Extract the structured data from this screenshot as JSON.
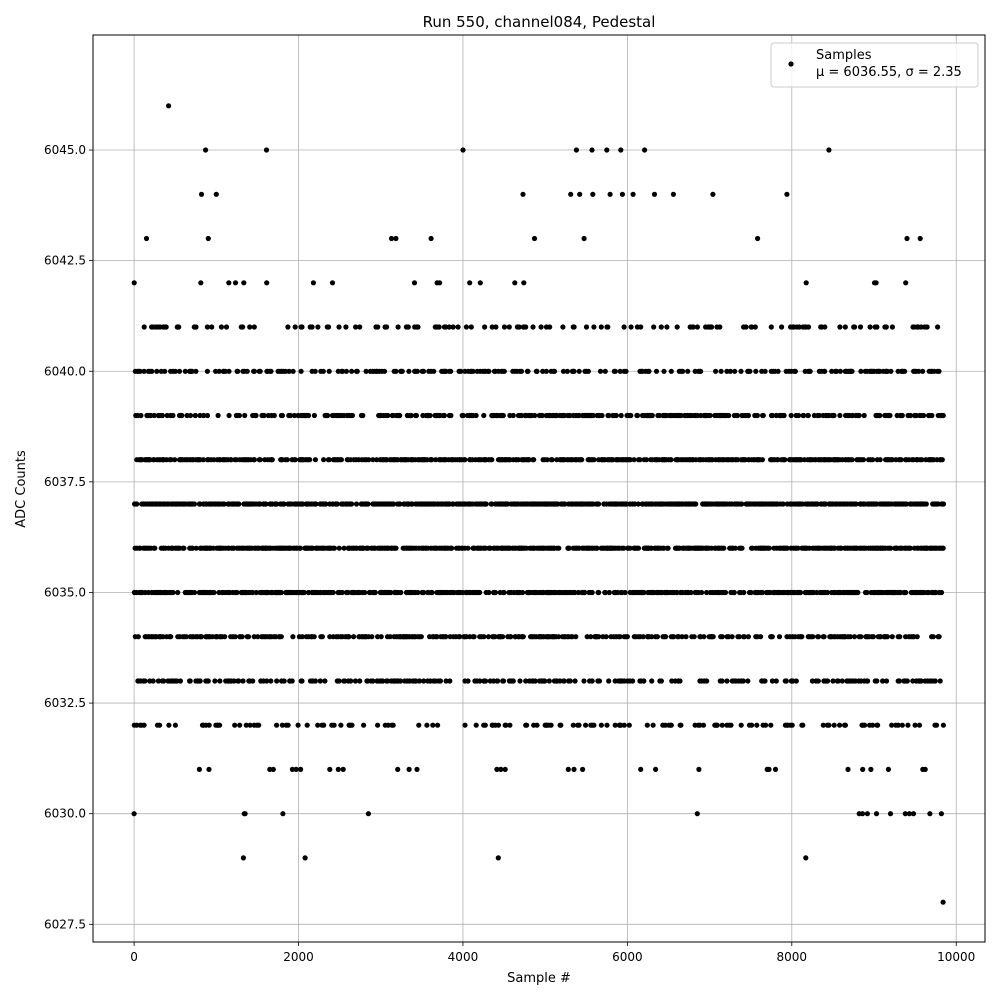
{
  "chart_data": {
    "type": "scatter",
    "title": "Run 550, channel084, Pedestal",
    "xlabel": "Sample #",
    "ylabel": "ADC Counts",
    "xlim": [
      -500,
      10350
    ],
    "ylim": [
      6027.1,
      6047.6
    ],
    "xticks": [
      0,
      2000,
      4000,
      6000,
      8000,
      10000
    ],
    "xtick_labels": [
      "0",
      "2000",
      "4000",
      "6000",
      "8000",
      "10000"
    ],
    "yticks": [
      6027.5,
      6030.0,
      6032.5,
      6035.0,
      6037.5,
      6040.0,
      6042.5,
      6045.0
    ],
    "ytick_labels": [
      "6027.5",
      "6030.0",
      "6032.5",
      "6035.0",
      "6037.5",
      "6040.0",
      "6042.5",
      "6045.0"
    ],
    "grid": true,
    "legend_position": "top-right",
    "marker_color": "#000000",
    "series": [
      {
        "name": "Samples",
        "stats_label": "μ = 6036.55, σ = 2.35",
        "mean": 6036.55,
        "sigma": 2.35,
        "x_range": [
          0,
          9840
        ],
        "dense_levels": [
          6032,
          6033,
          6034,
          6035,
          6036,
          6037,
          6038,
          6039,
          6040,
          6041
        ],
        "sparse_levels": [
          6031,
          6042,
          6043,
          6044,
          6045
        ],
        "points": [
          [
            0,
            6030
          ],
          [
            1340,
            6030
          ],
          [
            1350,
            6030
          ],
          [
            1810,
            6030
          ],
          [
            2850,
            6030
          ],
          [
            6850,
            6030
          ],
          [
            8820,
            6030
          ],
          [
            8860,
            6030
          ],
          [
            8920,
            6030
          ],
          [
            9030,
            6030
          ],
          [
            9200,
            6030
          ],
          [
            9380,
            6030
          ],
          [
            9430,
            6030
          ],
          [
            9480,
            6030
          ],
          [
            9680,
            6030
          ],
          [
            9820,
            6030
          ],
          [
            1330,
            6029
          ],
          [
            2080,
            6029
          ],
          [
            4430,
            6029
          ],
          [
            8170,
            6029
          ],
          [
            9840,
            6028
          ],
          [
            420,
            6046
          ],
          [
            870,
            6045
          ],
          [
            1610,
            6045
          ],
          [
            4000,
            6045
          ],
          [
            5380,
            6045
          ],
          [
            5570,
            6045
          ],
          [
            5750,
            6045
          ],
          [
            5920,
            6045
          ],
          [
            6210,
            6045
          ],
          [
            820,
            6044
          ],
          [
            1000,
            6044
          ],
          [
            4730,
            6044
          ],
          [
            5310,
            6044
          ],
          [
            5420,
            6044
          ],
          [
            5580,
            6044
          ],
          [
            5790,
            6044
          ],
          [
            5940,
            6044
          ],
          [
            6070,
            6044
          ],
          [
            6330,
            6044
          ],
          [
            6560,
            6044
          ],
          [
            7040,
            6044
          ],
          [
            7940,
            6044
          ]
        ]
      }
    ]
  }
}
